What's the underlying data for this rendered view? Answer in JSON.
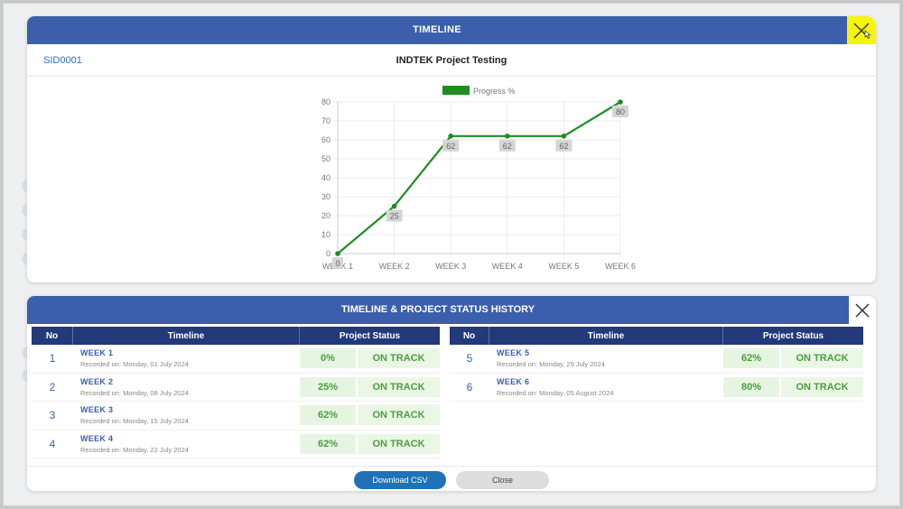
{
  "timeline_modal": {
    "title": "TIMELINE",
    "sid": "SID0001",
    "project_name": "INDTEK Project Testing",
    "close_icon": "close-icon",
    "highlight_color": "#f5f50a"
  },
  "chart_data": {
    "type": "line",
    "title": "",
    "legend": [
      "Progress %"
    ],
    "legend_position": "top",
    "categories": [
      "WEEK 1",
      "WEEK 2",
      "WEEK 3",
      "WEEK 4",
      "WEEK 5",
      "WEEK 6"
    ],
    "series": [
      {
        "name": "Progress %",
        "values": [
          0,
          25,
          62,
          62,
          62,
          80
        ],
        "color": "#1e8c1e"
      }
    ],
    "data_labels": [
      "0",
      "25",
      "62",
      "62",
      "62",
      "80"
    ],
    "xlabel": "",
    "ylabel": "",
    "ylim": [
      0,
      80
    ],
    "yticks": [
      0,
      10,
      20,
      30,
      40,
      50,
      60,
      70,
      80
    ],
    "grid": true
  },
  "history_modal": {
    "title": "TIMELINE & PROJECT STATUS HISTORY",
    "columns": [
      "No",
      "Timeline",
      "Project Status"
    ],
    "rows_left": [
      {
        "no": "1",
        "week": "WEEK  1",
        "recorded": "Recorded on:  Monday, 01 July 2024",
        "pct": "0%",
        "status": "ON TRACK"
      },
      {
        "no": "2",
        "week": "WEEK  2",
        "recorded": "Recorded on:  Monday, 08 July 2024",
        "pct": "25%",
        "status": "ON TRACK"
      },
      {
        "no": "3",
        "week": "WEEK  3",
        "recorded": "Recorded on:  Monday, 15 July 2024",
        "pct": "62%",
        "status": "ON TRACK"
      },
      {
        "no": "4",
        "week": "WEEK  4",
        "recorded": "Recorded on:  Monday, 22 July 2024",
        "pct": "62%",
        "status": "ON TRACK"
      }
    ],
    "rows_right": [
      {
        "no": "5",
        "week": "WEEK  5",
        "recorded": "Recorded on:  Monday, 29 July 2024",
        "pct": "62%",
        "status": "ON TRACK"
      },
      {
        "no": "6",
        "week": "WEEK  6",
        "recorded": "Recorded on:  Monday, 05 August 2024",
        "pct": "80%",
        "status": "ON TRACK"
      }
    ],
    "buttons": {
      "download": "Download CSV",
      "close": "Close"
    },
    "colors": {
      "header": "#3b5fac",
      "table_header": "#223a7a",
      "status_bg": "#e6f5e1",
      "status_text": "#4a9e3f",
      "download_btn": "#1f72b8"
    }
  }
}
